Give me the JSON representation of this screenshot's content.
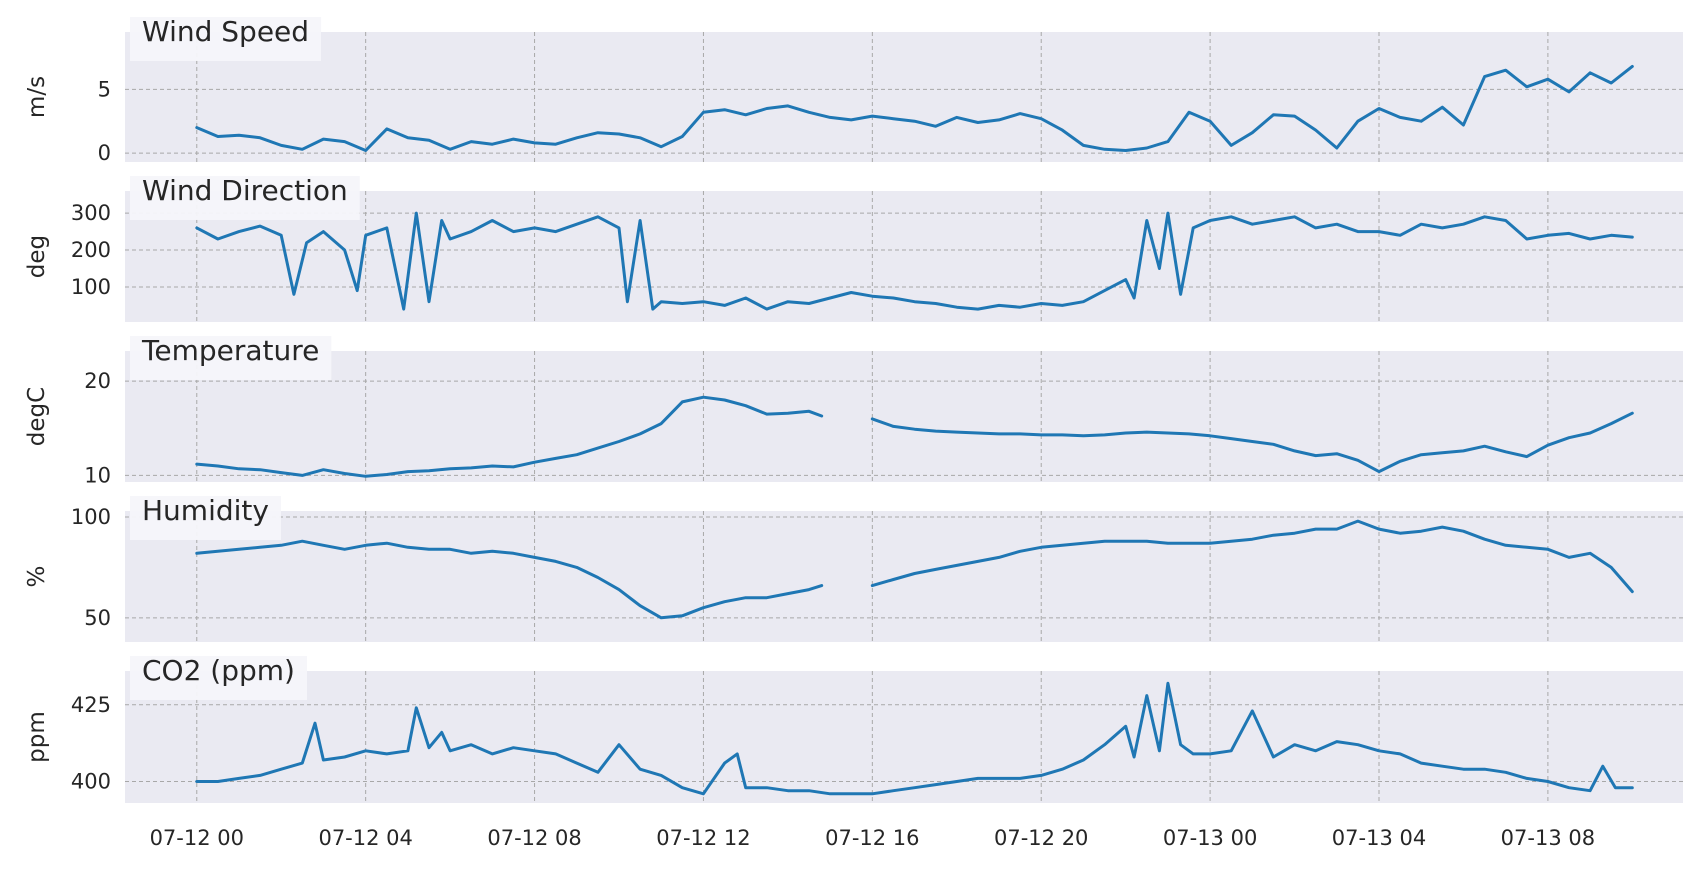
{
  "chart_data": {
    "type": "line",
    "x_ticks": [
      "07-12 00",
      "07-12 04",
      "07-12 08",
      "07-12 12",
      "07-12 16",
      "07-12 20",
      "07-13 00",
      "07-13 04",
      "07-13 08"
    ],
    "x_range": [
      -1.7,
      35.2
    ],
    "grid": true,
    "line_color": "#1f77b4",
    "panels": [
      {
        "title": "Wind Speed",
        "ylabel": "m/s",
        "ylim": [
          -0.7,
          9.5
        ],
        "yticks": [
          0,
          5
        ],
        "x": [
          0,
          0.5,
          1,
          1.5,
          2,
          2.5,
          3,
          3.5,
          4,
          4.5,
          5,
          5.5,
          6,
          6.5,
          7,
          7.5,
          8,
          8.5,
          9,
          9.5,
          10,
          10.5,
          11,
          11.5,
          12,
          12.5,
          13,
          13.5,
          14,
          14.5,
          15,
          15.5,
          16,
          16.5,
          17,
          17.5,
          18,
          18.5,
          19,
          19.5,
          20,
          20.5,
          21,
          21.5,
          22,
          22.5,
          23,
          23.5,
          24,
          24.5,
          25,
          25.5,
          26,
          26.5,
          27,
          27.5,
          28,
          28.5,
          29,
          29.5,
          30,
          30.5,
          31,
          31.5,
          32,
          32.5,
          33,
          33.5,
          34
        ],
        "y": [
          2.0,
          1.3,
          1.4,
          1.2,
          0.6,
          0.3,
          1.1,
          0.9,
          0.2,
          1.9,
          1.2,
          1.0,
          0.3,
          0.9,
          0.7,
          1.1,
          0.8,
          0.7,
          1.2,
          1.6,
          1.5,
          1.2,
          0.5,
          1.3,
          3.2,
          3.4,
          3.0,
          3.5,
          3.7,
          3.2,
          2.8,
          2.6,
          2.9,
          2.7,
          2.5,
          2.1,
          2.8,
          2.4,
          2.6,
          3.1,
          2.7,
          1.8,
          0.6,
          0.3,
          0.2,
          0.4,
          0.9,
          3.2,
          2.5,
          0.6,
          1.6,
          3.0,
          2.9,
          1.8,
          0.4,
          2.5,
          3.5,
          2.8,
          2.5,
          3.6,
          2.2,
          6.0,
          6.5,
          5.2,
          5.8,
          4.8,
          6.3,
          5.5,
          6.8
        ]
      },
      {
        "title": "Wind Direction",
        "ylabel": "deg",
        "ylim": [
          5,
          360
        ],
        "yticks": [
          100,
          200,
          300
        ],
        "x": [
          0,
          0.5,
          1,
          1.5,
          2,
          2.3,
          2.6,
          3,
          3.5,
          3.8,
          4,
          4.5,
          4.9,
          5.2,
          5.5,
          5.8,
          6,
          6.5,
          7,
          7.5,
          8,
          8.5,
          9,
          9.5,
          10,
          10.2,
          10.5,
          10.8,
          11,
          11.5,
          12,
          12.5,
          13,
          13.5,
          14,
          14.5,
          15,
          15.5,
          16,
          16.5,
          17,
          17.5,
          18,
          18.5,
          19,
          19.5,
          20,
          20.5,
          21,
          21.5,
          22,
          22.2,
          22.5,
          22.8,
          23,
          23.3,
          23.6,
          24,
          24.5,
          25,
          25.5,
          26,
          26.5,
          27,
          27.5,
          28,
          28.5,
          29,
          29.5,
          30,
          30.5,
          31,
          31.5,
          32,
          32.5,
          33,
          33.5,
          34
        ],
        "y": [
          260,
          230,
          250,
          265,
          240,
          80,
          220,
          250,
          200,
          90,
          240,
          260,
          40,
          300,
          60,
          280,
          230,
          250,
          280,
          250,
          260,
          250,
          270,
          290,
          260,
          60,
          280,
          40,
          60,
          55,
          60,
          50,
          70,
          40,
          60,
          55,
          70,
          85,
          75,
          70,
          60,
          55,
          45,
          40,
          50,
          45,
          55,
          50,
          60,
          90,
          120,
          70,
          280,
          150,
          300,
          80,
          260,
          280,
          290,
          270,
          280,
          290,
          260,
          270,
          250,
          250,
          240,
          270,
          260,
          270,
          290,
          280,
          230,
          240,
          245,
          230,
          240,
          235
        ]
      },
      {
        "title": "Temperature",
        "ylabel": "degC",
        "ylim": [
          9.3,
          23.2
        ],
        "yticks": [
          10,
          20
        ],
        "x": [
          0,
          0.5,
          1,
          1.5,
          2,
          2.5,
          3,
          3.5,
          4,
          4.5,
          5,
          5.5,
          6,
          6.5,
          7,
          7.5,
          8,
          8.5,
          9,
          9.5,
          10,
          10.5,
          11,
          11.5,
          12,
          12.5,
          13,
          13.5,
          14,
          14.5,
          14.8,
          null,
          16,
          16.5,
          17,
          17.5,
          18,
          18.5,
          19,
          19.5,
          20,
          20.5,
          21,
          21.5,
          22,
          22.5,
          23,
          23.5,
          24,
          24.5,
          25,
          25.5,
          26,
          26.5,
          27,
          27.5,
          28,
          28.5,
          29,
          29.5,
          30,
          30.5,
          31,
          31.5,
          32,
          32.5,
          33,
          33.5,
          34
        ],
        "y": [
          11.2,
          11.0,
          10.7,
          10.6,
          10.3,
          10.0,
          10.6,
          10.2,
          9.9,
          10.1,
          10.4,
          10.5,
          10.7,
          10.8,
          11.0,
          10.9,
          11.4,
          11.8,
          12.2,
          12.9,
          13.6,
          14.4,
          15.5,
          17.8,
          18.3,
          18.0,
          17.4,
          16.5,
          16.6,
          16.8,
          16.3,
          null,
          16.0,
          15.2,
          14.9,
          14.7,
          14.6,
          14.5,
          14.4,
          14.4,
          14.3,
          14.3,
          14.2,
          14.3,
          14.5,
          14.6,
          14.5,
          14.4,
          14.2,
          13.9,
          13.6,
          13.3,
          12.6,
          12.1,
          12.3,
          11.6,
          10.4,
          11.5,
          12.2,
          12.4,
          12.6,
          13.1,
          12.5,
          12.0,
          13.2,
          14.0,
          14.5,
          15.5,
          16.6
        ]
      },
      {
        "title": "Humidity",
        "ylabel": "%",
        "ylim": [
          38,
          103
        ],
        "yticks": [
          50,
          100
        ],
        "x": [
          0,
          0.5,
          1,
          1.5,
          2,
          2.5,
          3,
          3.5,
          4,
          4.5,
          5,
          5.5,
          6,
          6.5,
          7,
          7.5,
          8,
          8.5,
          9,
          9.5,
          10,
          10.5,
          11,
          11.5,
          12,
          12.5,
          13,
          13.5,
          14,
          14.5,
          14.8,
          null,
          16,
          16.5,
          17,
          17.5,
          18,
          18.5,
          19,
          19.5,
          20,
          20.5,
          21,
          21.5,
          22,
          22.5,
          23,
          23.5,
          24,
          24.5,
          25,
          25.5,
          26,
          26.5,
          27,
          27.5,
          28,
          28.5,
          29,
          29.5,
          30,
          30.5,
          31,
          31.5,
          32,
          32.5,
          33,
          33.5,
          34
        ],
        "y": [
          82,
          83,
          84,
          85,
          86,
          88,
          86,
          84,
          86,
          87,
          85,
          84,
          84,
          82,
          83,
          82,
          80,
          78,
          75,
          70,
          64,
          56,
          50,
          51,
          55,
          58,
          60,
          60,
          62,
          64,
          66,
          null,
          66,
          69,
          72,
          74,
          76,
          78,
          80,
          83,
          85,
          86,
          87,
          88,
          88,
          88,
          87,
          87,
          87,
          88,
          89,
          91,
          92,
          94,
          94,
          98,
          94,
          92,
          93,
          95,
          93,
          89,
          86,
          85,
          84,
          80,
          82,
          75,
          63
        ]
      },
      {
        "title": "CO2 (ppm)",
        "ylabel": "ppm",
        "ylim": [
          393,
          436
        ],
        "yticks": [
          400,
          425
        ],
        "x": [
          0,
          0.5,
          1,
          1.5,
          2,
          2.5,
          2.8,
          3,
          3.5,
          4,
          4.5,
          5,
          5.2,
          5.5,
          5.8,
          6,
          6.5,
          7,
          7.5,
          8,
          8.5,
          9,
          9.5,
          10,
          10.5,
          11,
          11.5,
          12,
          12.5,
          12.8,
          13,
          13.5,
          14,
          14.5,
          15,
          15.5,
          16,
          16.5,
          17,
          17.5,
          18,
          18.5,
          19,
          19.5,
          20,
          20.5,
          21,
          21.5,
          22,
          22.2,
          22.5,
          22.8,
          23,
          23.3,
          23.6,
          24,
          24.5,
          25,
          25.5,
          26,
          26.5,
          27,
          27.5,
          28,
          28.5,
          29,
          29.5,
          30,
          30.5,
          31,
          31.5,
          32,
          32.5,
          33,
          33.3,
          33.6,
          34
        ],
        "y": [
          400,
          400,
          401,
          402,
          404,
          406,
          419,
          407,
          408,
          410,
          409,
          410,
          424,
          411,
          416,
          410,
          412,
          409,
          411,
          410,
          409,
          406,
          403,
          412,
          404,
          402,
          398,
          396,
          406,
          409,
          398,
          398,
          397,
          397,
          396,
          396,
          396,
          397,
          398,
          399,
          400,
          401,
          401,
          401,
          402,
          404,
          407,
          412,
          418,
          408,
          428,
          410,
          432,
          412,
          409,
          409,
          410,
          423,
          408,
          412,
          410,
          413,
          412,
          410,
          409,
          406,
          405,
          404,
          404,
          403,
          401,
          400,
          398,
          397,
          405,
          398,
          398
        ]
      }
    ]
  }
}
